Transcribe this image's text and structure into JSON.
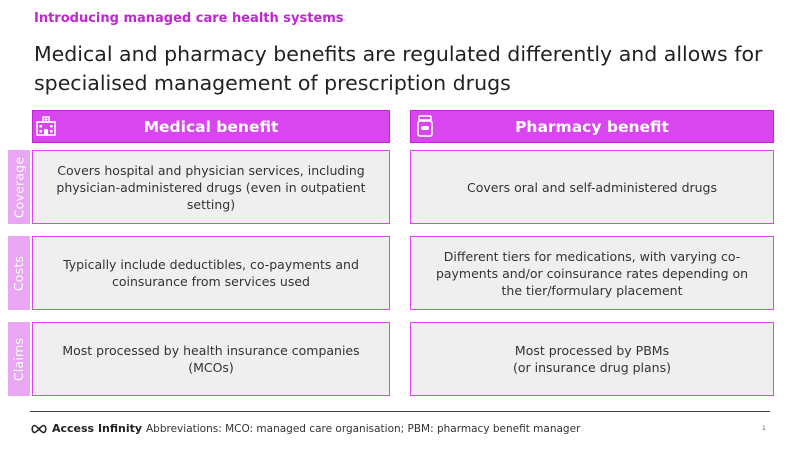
{
  "header": {
    "eyebrow": "Introducing managed care health systems",
    "title": "Medical and pharmacy benefits are regulated differently and allows for specialised management of prescription drugs"
  },
  "columns": [
    {
      "label": "Medical benefit",
      "icon": "hospital-icon"
    },
    {
      "label": "Pharmacy benefit",
      "icon": "pill-bottle-icon"
    }
  ],
  "rows": [
    {
      "label": "Coverage",
      "medical": "Covers hospital and physician services, including physician-administered drugs (even in outpatient setting)",
      "pharmacy": "Covers oral and self-administered drugs"
    },
    {
      "label": "Costs",
      "medical": "Typically include deductibles, co-payments and coinsurance from services used",
      "pharmacy": "Different tiers for medications, with varying co-payments and/or coinsurance rates depending on the tier/formulary placement"
    },
    {
      "label": "Claims",
      "medical": "Most processed by health insurance companies (MCOs)",
      "pharmacy": "Most processed by PBMs\n(or insurance drug plans)"
    }
  ],
  "footer": {
    "logo_text": "Access Infinity",
    "abbreviations": "Abbreviations: MCO: managed care organisation; PBM: pharmacy benefit manager",
    "page_number": "1"
  },
  "colors": {
    "accent": "#d946ef",
    "accent_dark": "#c026d3",
    "row_label": "#e9a6f2",
    "cell_bg": "#efefef"
  }
}
